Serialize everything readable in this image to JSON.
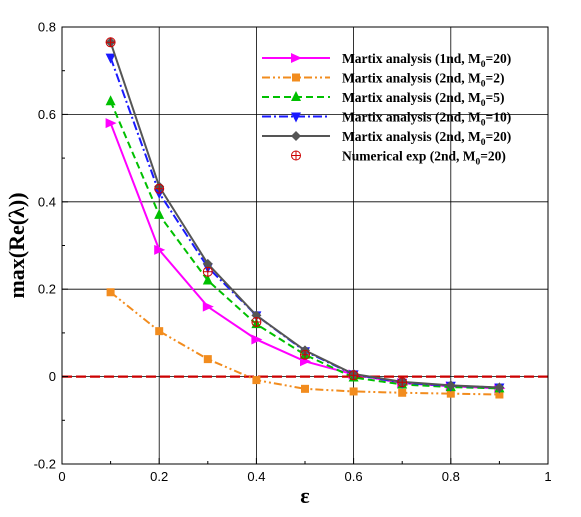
{
  "chart_data": {
    "type": "line",
    "title": "",
    "xlabel": "ε",
    "ylabel": "max(Re(λ))",
    "xlim": [
      0,
      1
    ],
    "ylim": [
      -0.2,
      0.8
    ],
    "x_ticks": [
      "0",
      "0.2",
      "0.4",
      "0.6",
      "0.8",
      "1"
    ],
    "y_ticks": [
      "-0.2",
      "0",
      "0.2",
      "0.4",
      "0.6",
      "0.8"
    ],
    "grid": true,
    "legend_position": "top-right",
    "x": [
      0.1,
      0.2,
      0.3,
      0.4,
      0.5,
      0.6,
      0.7,
      0.8,
      0.9
    ],
    "series": [
      {
        "name": "Martix analysis (1nd, M",
        "name_sub": "0",
        "name_tail": "=20)",
        "color": "#ff00ff",
        "dash": "",
        "marker": "triangle-right",
        "values": [
          0.58,
          0.29,
          0.16,
          0.085,
          0.035,
          0.005,
          -0.015,
          -0.022,
          -0.027
        ]
      },
      {
        "name": "Martix analysis (2nd, M",
        "name_sub": "0",
        "name_tail": "=2)",
        "color": "#f28c1e",
        "dash": "8,3,2,3,2,3",
        "marker": "square",
        "values": [
          0.193,
          0.104,
          0.04,
          -0.008,
          -0.028,
          -0.034,
          -0.037,
          -0.039,
          -0.041
        ]
      },
      {
        "name": "Martix analysis (2nd, M",
        "name_sub": "0",
        "name_tail": "=5)",
        "color": "#00c000",
        "dash": "7,4",
        "marker": "triangle-up",
        "values": [
          0.63,
          0.37,
          0.22,
          0.12,
          0.05,
          -0.002,
          -0.018,
          -0.024,
          -0.027
        ]
      },
      {
        "name": "Martix analysis (2nd, M",
        "name_sub": "0",
        "name_tail": "=10)",
        "color": "#1a1aff",
        "dash": "9,3,2,3",
        "marker": "triangle-down",
        "values": [
          0.73,
          0.42,
          0.25,
          0.14,
          0.058,
          0.005,
          -0.014,
          -0.021,
          -0.025
        ]
      },
      {
        "name": "Martix analysis (2nd, M",
        "name_sub": "0",
        "name_tail": "=20)",
        "color": "#555555",
        "dash": "",
        "marker": "diamond",
        "values": [
          0.765,
          0.435,
          0.258,
          0.14,
          0.06,
          0.006,
          -0.012,
          -0.02,
          -0.025
        ]
      },
      {
        "name": "Numerical exp  (2nd, M",
        "name_sub": "0",
        "name_tail": "=20)",
        "color": "#cc0000",
        "dash": "none",
        "marker": "circle-plus",
        "x": [
          0.1,
          0.2,
          0.3,
          0.4,
          0.5,
          0.6,
          0.7
        ],
        "values": [
          0.765,
          0.43,
          0.24,
          0.125,
          0.05,
          0.003,
          -0.013
        ]
      }
    ],
    "reference_line": {
      "y": 0,
      "color": "#cc0000",
      "dash": "10,4"
    }
  }
}
